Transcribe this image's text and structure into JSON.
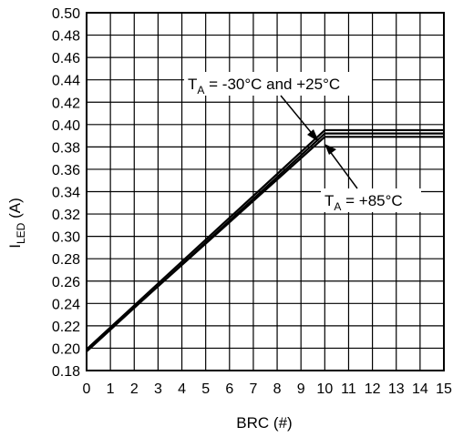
{
  "chart_data": {
    "type": "line",
    "title": "",
    "xlabel": "BRC (#)",
    "ylabel": {
      "main": "I",
      "sub": "LED",
      "unit": " (A)"
    },
    "xlim": [
      0,
      15
    ],
    "ylim": [
      0.18,
      0.5
    ],
    "x_ticks": [
      "0",
      "1",
      "2",
      "3",
      "4",
      "5",
      "6",
      "7",
      "8",
      "9",
      "10",
      "11",
      "12",
      "13",
      "14",
      "15"
    ],
    "y_ticks": [
      "0.18",
      "0.20",
      "0.22",
      "0.24",
      "0.26",
      "0.28",
      "0.30",
      "0.32",
      "0.34",
      "0.36",
      "0.38",
      "0.40",
      "0.42",
      "0.44",
      "0.46",
      "0.48",
      "0.50"
    ],
    "grid": true,
    "series": [
      {
        "name": "TA = -30°C and +25°C",
        "x": [
          0,
          10,
          15
        ],
        "y": [
          0.199,
          0.395,
          0.395
        ]
      },
      {
        "name": "TA = -30°C and +25°C",
        "x": [
          0,
          10,
          15
        ],
        "y": [
          0.197,
          0.392,
          0.392
        ]
      },
      {
        "name": "TA = +85°C",
        "x": [
          0,
          10,
          15
        ],
        "y": [
          0.198,
          0.389,
          0.389
        ]
      }
    ],
    "annotations": [
      {
        "main": "T",
        "sub": "A",
        "rest": " = -30°C and +25°C"
      },
      {
        "main": "T",
        "sub": "A",
        "rest": " = +85°C"
      }
    ]
  }
}
